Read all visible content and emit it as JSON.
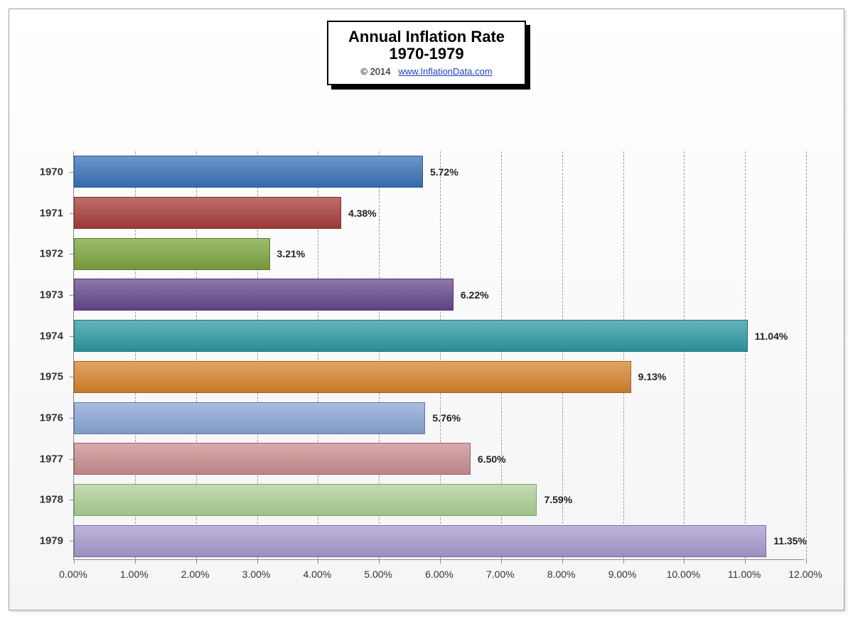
{
  "title": {
    "line1": "Annual Inflation Rate",
    "line2": "1970-1979",
    "copyright": "© 2014",
    "link_text": "www.InflationData.com"
  },
  "chart": {
    "type": "bar-horizontal",
    "x_min": 0.0,
    "x_max": 12.0,
    "x_tick_step": 1.0,
    "x_tick_format_suffix": "%",
    "x_tick_decimals": 2,
    "categories": [
      "1970",
      "1971",
      "1972",
      "1973",
      "1974",
      "1975",
      "1976",
      "1977",
      "1978",
      "1979"
    ],
    "values": [
      5.72,
      4.38,
      3.21,
      6.22,
      11.04,
      9.13,
      5.76,
      6.5,
      7.59,
      11.35
    ],
    "value_labels": [
      "5.72%",
      "4.38%",
      "3.21%",
      "6.22%",
      "11.04%",
      "9.13%",
      "5.76%",
      "6.50%",
      "7.59%",
      "11.35%"
    ],
    "bar_fill_colors": [
      "#3b72b8",
      "#a93d3c",
      "#7da53e",
      "#66498e",
      "#2f9aa4",
      "#d7852e",
      "#8aa6d6",
      "#cb8f91",
      "#aed197",
      "#a99bce"
    ],
    "bar_border_colors": [
      "#2a5690",
      "#7e2c2b",
      "#5c7c2c",
      "#4b356a",
      "#1f7079",
      "#a3611d",
      "#5f79a6",
      "#9c6264",
      "#7ea066",
      "#7a6c9e"
    ],
    "bar_gap_ratio": 0.22,
    "grid_color": "#9a9a9a",
    "axis_color": "#888888",
    "background": "#ffffff",
    "label_fontsize": 14,
    "ylabel_fontsize": 15,
    "ylabel_fontweight": "bold"
  }
}
